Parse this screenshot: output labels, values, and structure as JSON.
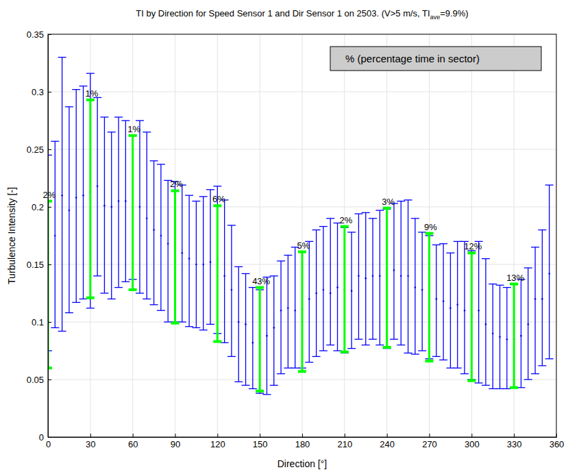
{
  "chart_data": {
    "type": "error_bar",
    "title": [
      "TI by Direction for Speed Sensor 1 and Dir Sensor 1 on 2503. (V>5 m/s, TI",
      "ave",
      "=9.9%)"
    ],
    "x_label": "Direction [°]",
    "y_label": "Turbulence Intensity [-]",
    "annotations": [
      "% (percentage time in sector)"
    ],
    "xlim": [
      0,
      360
    ],
    "xticks": [
      0,
      30,
      60,
      90,
      120,
      150,
      180,
      210,
      240,
      270,
      300,
      330,
      360
    ],
    "ylim": [
      0,
      0.35
    ],
    "yticks": [
      0,
      0.05,
      0.1,
      0.15,
      0.2,
      0.25,
      0.3,
      0.35
    ],
    "grid": true,
    "series": [
      {
        "color": "#0000ff",
        "marker": "dot",
        "x": [
          0,
          5,
          10,
          15,
          20,
          25,
          30,
          35,
          40,
          45,
          50,
          55,
          60,
          65,
          70,
          75,
          80,
          85,
          90,
          95,
          100,
          105,
          110,
          115,
          120,
          125,
          130,
          135,
          140,
          145,
          150,
          155,
          160,
          165,
          170,
          175,
          180,
          185,
          190,
          195,
          200,
          205,
          210,
          215,
          220,
          225,
          230,
          235,
          240,
          245,
          250,
          255,
          260,
          265,
          270,
          275,
          280,
          285,
          290,
          295,
          300,
          305,
          310,
          315,
          320,
          325,
          330,
          335,
          340,
          345,
          350,
          355
        ],
        "lower": [
          0.075,
          0.095,
          0.092,
          0.108,
          0.117,
          0.12,
          0.112,
          0.14,
          0.125,
          0.12,
          0.13,
          0.135,
          0.137,
          0.125,
          0.12,
          0.115,
          0.11,
          0.1,
          0.1,
          0.1,
          0.096,
          0.095,
          0.093,
          0.098,
          0.09,
          0.082,
          0.07,
          0.048,
          0.045,
          0.042,
          0.038,
          0.037,
          0.045,
          0.055,
          0.06,
          0.06,
          0.06,
          0.065,
          0.07,
          0.075,
          0.08,
          0.075,
          0.073,
          0.077,
          0.085,
          0.08,
          0.085,
          0.08,
          0.077,
          0.085,
          0.08,
          0.073,
          0.072,
          0.075,
          0.068,
          0.07,
          0.067,
          0.06,
          0.06,
          0.055,
          0.05,
          0.047,
          0.045,
          0.042,
          0.042,
          0.042,
          0.043,
          0.043,
          0.05,
          0.055,
          0.062,
          0.068
        ],
        "mean": [
          0.16,
          0.175,
          0.21,
          0.197,
          0.208,
          0.21,
          0.213,
          0.218,
          0.201,
          0.2,
          0.205,
          0.205,
          0.2,
          0.2,
          0.19,
          0.18,
          0.175,
          0.168,
          0.152,
          0.16,
          0.155,
          0.15,
          0.15,
          0.152,
          0.155,
          0.14,
          0.128,
          0.1,
          0.098,
          0.082,
          0.082,
          0.088,
          0.095,
          0.11,
          0.112,
          0.11,
          0.111,
          0.12,
          0.125,
          0.128,
          0.125,
          0.13,
          0.128,
          0.127,
          0.14,
          0.138,
          0.14,
          0.14,
          0.139,
          0.145,
          0.14,
          0.14,
          0.13,
          0.128,
          0.125,
          0.12,
          0.118,
          0.112,
          0.115,
          0.11,
          0.105,
          0.11,
          0.098,
          0.09,
          0.087,
          0.085,
          0.085,
          0.088,
          0.098,
          0.12,
          0.12,
          0.142
        ],
        "upper": [
          0.245,
          0.257,
          0.33,
          0.287,
          0.302,
          0.305,
          0.316,
          0.295,
          0.278,
          0.265,
          0.278,
          0.275,
          0.262,
          0.275,
          0.265,
          0.24,
          0.237,
          0.223,
          0.222,
          0.219,
          0.21,
          0.205,
          0.209,
          0.215,
          0.218,
          0.206,
          0.184,
          0.148,
          0.142,
          0.13,
          0.128,
          0.139,
          0.14,
          0.153,
          0.158,
          0.165,
          0.161,
          0.17,
          0.18,
          0.183,
          0.19,
          0.186,
          0.182,
          0.178,
          0.194,
          0.195,
          0.19,
          0.197,
          0.198,
          0.203,
          0.205,
          0.206,
          0.19,
          0.178,
          0.175,
          0.167,
          0.168,
          0.16,
          0.17,
          0.17,
          0.162,
          0.17,
          0.155,
          0.133,
          0.132,
          0.13,
          0.133,
          0.137,
          0.147,
          0.165,
          0.18,
          0.219
        ]
      },
      {
        "color": "#00ff00",
        "x": [
          0,
          30,
          60,
          90,
          120,
          150,
          180,
          210,
          240,
          270,
          300,
          330
        ],
        "lower": [
          0.06,
          0.121,
          0.128,
          0.099,
          0.083,
          0.04,
          0.057,
          0.074,
          0.078,
          0.066,
          0.049,
          0.043
        ],
        "upper": [
          0.205,
          0.293,
          0.262,
          0.214,
          0.201,
          0.13,
          0.161,
          0.183,
          0.199,
          0.177,
          0.16,
          0.133
        ],
        "percent_time": [
          2,
          1,
          1,
          2,
          6,
          43,
          5,
          2,
          3,
          9,
          12,
          13
        ],
        "percent_labels": [
          "2%",
          "1%",
          "1%",
          "2%",
          "6%",
          "43%",
          "5%",
          "2%",
          "3%",
          "9%",
          "12%",
          "13%"
        ]
      }
    ]
  }
}
